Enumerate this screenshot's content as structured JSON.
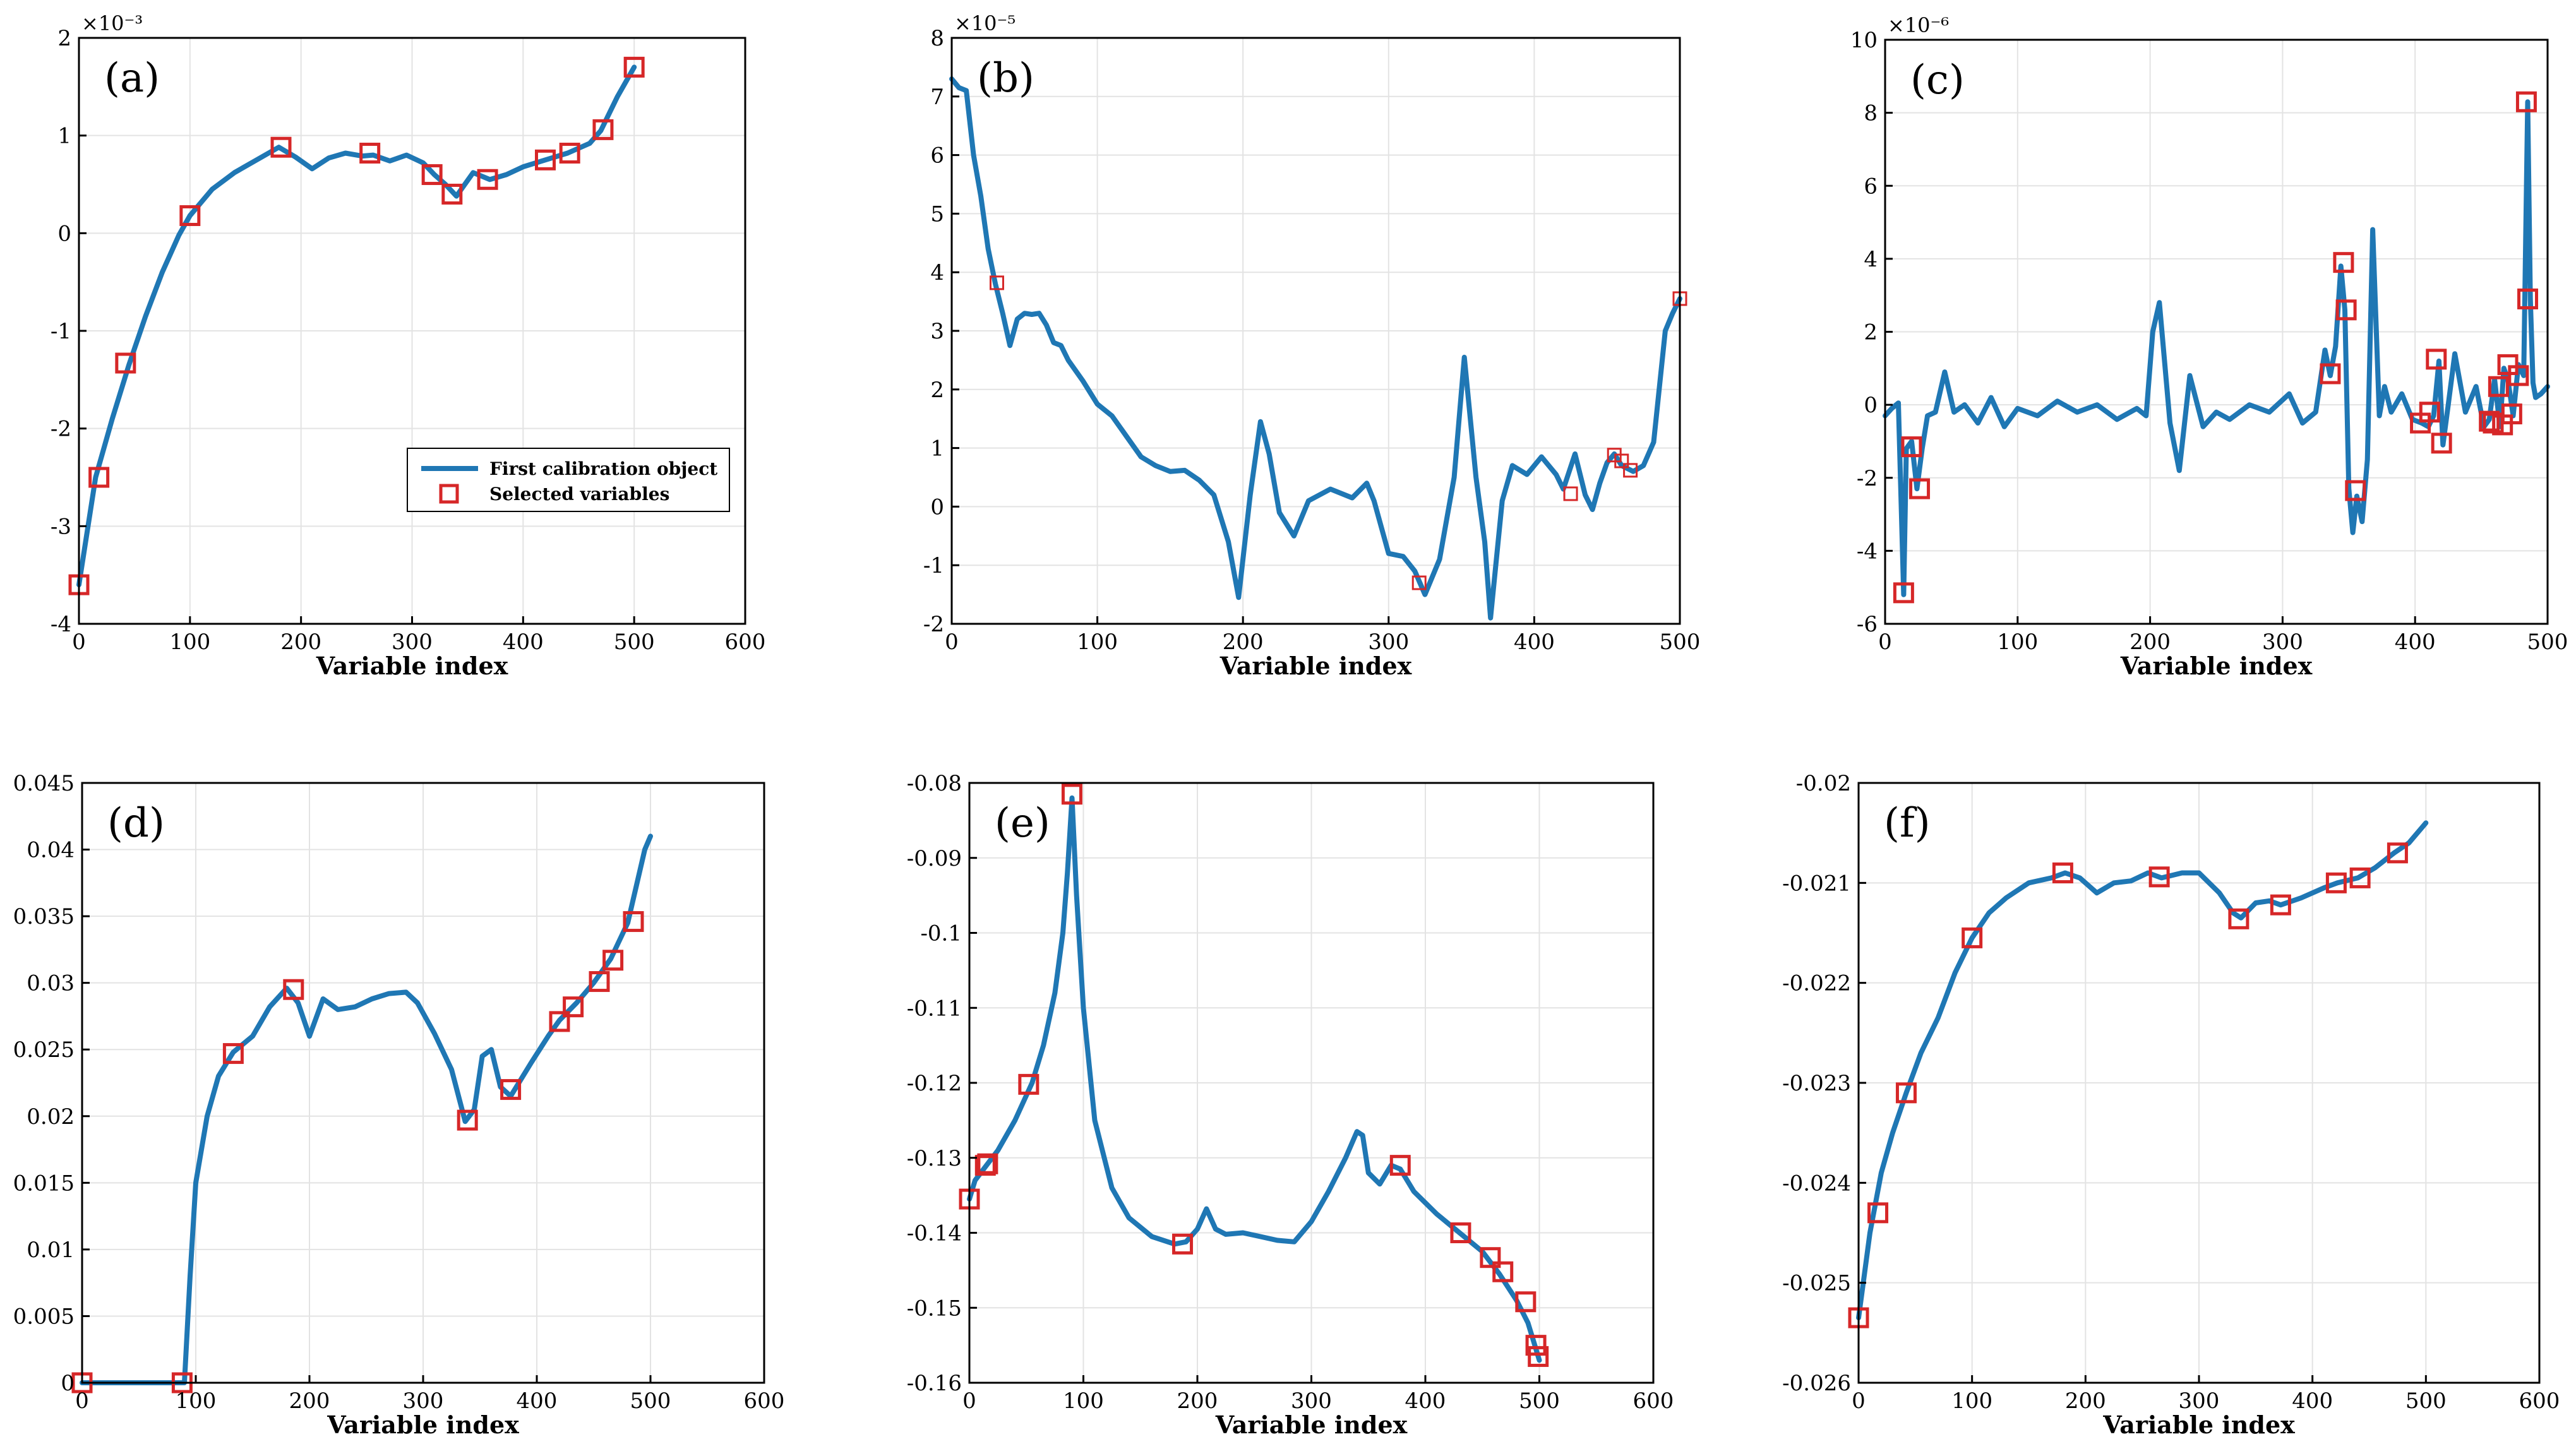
{
  "figure": {
    "line_color": "#1f77b4",
    "marker_color": "#d62728"
  },
  "chart_data": [
    {
      "id": "a",
      "panel_label": "(a)",
      "type": "line",
      "xlabel": "Variable index",
      "xlim": [
        0,
        600
      ],
      "xticks": [
        0,
        100,
        200,
        300,
        400,
        500,
        600
      ],
      "ylim": [
        -4,
        2
      ],
      "yticks": [
        -4,
        -3,
        -2,
        -1,
        0,
        1,
        2
      ],
      "ytick_labels": [
        "-4",
        "-3",
        "-2",
        "-1",
        "0",
        "1",
        "2"
      ],
      "exponent": "×10⁻³",
      "legend": {
        "position": "bottom-right",
        "line_label": "First calibration object",
        "marker_label": "Selected variables"
      },
      "series": [
        {
          "name": "First calibration object",
          "x": [
            0,
            15,
            30,
            45,
            60,
            75,
            90,
            100,
            120,
            140,
            160,
            180,
            195,
            210,
            225,
            240,
            255,
            265,
            280,
            295,
            310,
            320,
            330,
            340,
            355,
            370,
            385,
            400,
            420,
            440,
            460,
            470,
            485,
            500
          ],
          "y": [
            -3.6,
            -2.5,
            -1.9,
            -1.35,
            -0.85,
            -0.4,
            -0.02,
            0.18,
            0.45,
            0.62,
            0.75,
            0.88,
            0.78,
            0.66,
            0.77,
            0.82,
            0.79,
            0.8,
            0.74,
            0.8,
            0.72,
            0.6,
            0.5,
            0.38,
            0.62,
            0.55,
            0.6,
            0.68,
            0.75,
            0.82,
            0.92,
            1.05,
            1.4,
            1.7
          ]
        }
      ],
      "selected": {
        "x": [
          0,
          18,
          42,
          100,
          182,
          262,
          318,
          336,
          368,
          420,
          442,
          472,
          500
        ],
        "y": [
          -3.6,
          -2.5,
          -1.33,
          0.18,
          0.88,
          0.82,
          0.6,
          0.4,
          0.55,
          0.75,
          0.82,
          1.06,
          1.7
        ]
      }
    },
    {
      "id": "b",
      "panel_label": "(b)",
      "type": "line",
      "xlabel": "Variable index",
      "xlim": [
        0,
        500
      ],
      "xticks": [
        0,
        100,
        200,
        300,
        400,
        500
      ],
      "ylim": [
        -2,
        8
      ],
      "yticks": [
        -2,
        -1,
        0,
        1,
        2,
        3,
        4,
        5,
        6,
        7,
        8
      ],
      "ytick_labels": [
        "-2",
        "-1",
        "0",
        "1",
        "2",
        "3",
        "4",
        "5",
        "6",
        "7",
        "8"
      ],
      "exponent": "×10⁻⁵",
      "series": [
        {
          "name": "First calibration object",
          "x": [
            0,
            5,
            10,
            15,
            20,
            25,
            30,
            35,
            40,
            45,
            50,
            55,
            60,
            65,
            70,
            75,
            80,
            90,
            100,
            110,
            120,
            130,
            140,
            150,
            160,
            170,
            180,
            190,
            197,
            205,
            212,
            218,
            225,
            235,
            245,
            260,
            275,
            285,
            290,
            300,
            310,
            318,
            325,
            335,
            345,
            352,
            360,
            366,
            370,
            378,
            385,
            395,
            405,
            415,
            420,
            428,
            435,
            440,
            445,
            450,
            455,
            460,
            468,
            475,
            482,
            490,
            495,
            500
          ],
          "y": [
            7.3,
            7.15,
            7.1,
            6.0,
            5.3,
            4.4,
            3.8,
            3.3,
            2.75,
            3.2,
            3.3,
            3.28,
            3.3,
            3.1,
            2.8,
            2.75,
            2.5,
            2.15,
            1.75,
            1.55,
            1.2,
            0.85,
            0.7,
            0.6,
            0.62,
            0.45,
            0.2,
            -0.6,
            -1.55,
            0.2,
            1.45,
            0.9,
            -0.1,
            -0.5,
            0.1,
            0.3,
            0.15,
            0.4,
            0.1,
            -0.8,
            -0.85,
            -1.1,
            -1.5,
            -0.9,
            0.5,
            2.55,
            0.5,
            -0.6,
            -1.9,
            0.1,
            0.7,
            0.55,
            0.85,
            0.55,
            0.3,
            0.9,
            0.2,
            -0.05,
            0.4,
            0.75,
            0.9,
            0.7,
            0.6,
            0.7,
            1.1,
            3.0,
            3.3,
            3.55
          ]
        }
      ],
      "selected": {
        "x": [
          31,
          321,
          425,
          455,
          460,
          466,
          500
        ],
        "y": [
          3.82,
          -1.3,
          0.22,
          0.88,
          0.78,
          0.62,
          3.55
        ]
      }
    },
    {
      "id": "c",
      "panel_label": "(c)",
      "type": "line",
      "xlabel": "Variable index",
      "xlim": [
        0,
        500
      ],
      "xticks": [
        0,
        100,
        200,
        300,
        400,
        500
      ],
      "ylim": [
        -6,
        10
      ],
      "yticks": [
        -6,
        -4,
        -2,
        0,
        2,
        4,
        6,
        8,
        10
      ],
      "ytick_labels": [
        "-6",
        "-4",
        "-2",
        "0",
        "2",
        "4",
        "6",
        "8",
        "10"
      ],
      "exponent": "×10⁻⁶",
      "series": [
        {
          "name": "First calibration object",
          "x": [
            0,
            5,
            10,
            14,
            16,
            20,
            24,
            28,
            32,
            38,
            45,
            52,
            60,
            70,
            80,
            90,
            100,
            115,
            130,
            145,
            160,
            175,
            190,
            197,
            202,
            207,
            215,
            222,
            230,
            240,
            250,
            260,
            275,
            290,
            305,
            315,
            325,
            332,
            336,
            340,
            344,
            347,
            350,
            353,
            356,
            360,
            364,
            368,
            373,
            377,
            382,
            390,
            398,
            405,
            410,
            414,
            418,
            421,
            425,
            430,
            438,
            446,
            452,
            456,
            460,
            464,
            467,
            470,
            474,
            478,
            482,
            485,
            487,
            489,
            491,
            495,
            500
          ],
          "y": [
            -0.3,
            -0.1,
            0.05,
            -5.2,
            -1.2,
            -1.0,
            -2.3,
            -1.2,
            -0.3,
            -0.2,
            0.9,
            -0.2,
            0.0,
            -0.5,
            0.2,
            -0.6,
            -0.1,
            -0.3,
            0.1,
            -0.2,
            0.0,
            -0.4,
            -0.1,
            -0.3,
            2.0,
            2.8,
            -0.5,
            -1.8,
            0.8,
            -0.6,
            -0.2,
            -0.4,
            0.0,
            -0.2,
            0.3,
            -0.5,
            -0.2,
            1.5,
            0.8,
            1.6,
            3.8,
            2.6,
            -2.3,
            -3.5,
            -2.5,
            -3.2,
            -1.5,
            4.8,
            -0.3,
            0.5,
            -0.2,
            0.3,
            -0.4,
            -0.5,
            -0.6,
            -0.3,
            1.2,
            -1.1,
            0.0,
            1.4,
            -0.2,
            0.5,
            -0.6,
            -0.4,
            0.7,
            -0.6,
            1.0,
            0.7,
            -0.3,
            1.1,
            0.8,
            8.3,
            2.9,
            0.6,
            0.2,
            0.3,
            0.5
          ]
        }
      ],
      "selected": {
        "x": [
          14,
          20,
          26,
          336,
          346,
          348,
          355,
          404,
          411,
          416,
          420,
          456,
          459,
          463,
          466,
          470,
          473,
          478,
          484,
          485
        ],
        "y": [
          -5.15,
          -1.15,
          -2.3,
          0.85,
          3.9,
          2.6,
          -2.35,
          -0.5,
          -0.2,
          1.25,
          -1.05,
          -0.45,
          -0.5,
          0.5,
          -0.55,
          1.1,
          -0.25,
          0.8,
          8.3,
          2.9
        ]
      }
    },
    {
      "id": "d",
      "panel_label": "(d)",
      "type": "line",
      "xlabel": "Variable index",
      "xlim": [
        0,
        600
      ],
      "xticks": [
        0,
        100,
        200,
        300,
        400,
        500,
        600
      ],
      "ylim": [
        0,
        0.045
      ],
      "yticks": [
        0,
        0.005,
        0.01,
        0.015,
        0.02,
        0.025,
        0.03,
        0.035,
        0.04,
        0.045
      ],
      "ytick_labels": [
        "0",
        "0.005",
        "0.01",
        "0.015",
        "0.02",
        "0.025",
        "0.03",
        "0.035",
        "0.04",
        "0.045"
      ],
      "exponent": "",
      "series": [
        {
          "name": "First calibration object",
          "x": [
            0,
            85,
            90,
            95,
            100,
            110,
            120,
            133,
            150,
            165,
            180,
            190,
            200,
            212,
            225,
            240,
            255,
            270,
            285,
            295,
            310,
            325,
            337,
            345,
            352,
            360,
            368,
            377,
            395,
            410,
            420,
            435,
            450,
            465,
            480,
            495,
            500
          ],
          "y": [
            0,
            0,
            0,
            0.008,
            0.015,
            0.02,
            0.023,
            0.0248,
            0.026,
            0.0282,
            0.0296,
            0.0285,
            0.026,
            0.0288,
            0.028,
            0.0282,
            0.0288,
            0.0292,
            0.0293,
            0.0285,
            0.0262,
            0.0235,
            0.0196,
            0.0205,
            0.0245,
            0.025,
            0.0222,
            0.0215,
            0.024,
            0.026,
            0.0272,
            0.0285,
            0.03,
            0.0318,
            0.0345,
            0.04,
            0.041
          ]
        }
      ],
      "selected": {
        "x": [
          0,
          88,
          133,
          186,
          339,
          377,
          420,
          432,
          455,
          467,
          485
        ],
        "y": [
          0,
          0,
          0.0247,
          0.0295,
          0.0197,
          0.022,
          0.0271,
          0.0282,
          0.0301,
          0.0317,
          0.0346
        ]
      }
    },
    {
      "id": "e",
      "panel_label": "(e)",
      "type": "line",
      "xlabel": "Variable index",
      "xlim": [
        0,
        600
      ],
      "xticks": [
        0,
        100,
        200,
        300,
        400,
        500,
        600
      ],
      "ylim": [
        -0.16,
        -0.08
      ],
      "yticks": [
        -0.16,
        -0.15,
        -0.14,
        -0.13,
        -0.12,
        -0.11,
        -0.1,
        -0.09,
        -0.08
      ],
      "ytick_labels": [
        "-0.16",
        "-0.15",
        "-0.14",
        "-0.13",
        "-0.12",
        "-0.11",
        "-0.1",
        "-0.09",
        "-0.08"
      ],
      "exponent": "",
      "series": [
        {
          "name": "First calibration object",
          "x": [
            0,
            5,
            15,
            25,
            40,
            55,
            65,
            75,
            82,
            86,
            90,
            94,
            100,
            110,
            125,
            140,
            160,
            180,
            190,
            200,
            208,
            216,
            225,
            240,
            255,
            270,
            285,
            300,
            315,
            330,
            340,
            345,
            350,
            360,
            370,
            378,
            390,
            410,
            430,
            450,
            465,
            480,
            490,
            495,
            500
          ],
          "y": [
            -0.1355,
            -0.133,
            -0.131,
            -0.129,
            -0.125,
            -0.12,
            -0.115,
            -0.108,
            -0.1,
            -0.092,
            -0.082,
            -0.095,
            -0.11,
            -0.125,
            -0.134,
            -0.138,
            -0.1405,
            -0.1415,
            -0.1412,
            -0.1395,
            -0.1368,
            -0.1395,
            -0.1402,
            -0.14,
            -0.1405,
            -0.141,
            -0.1412,
            -0.1385,
            -0.1345,
            -0.13,
            -0.1265,
            -0.127,
            -0.132,
            -0.1335,
            -0.131,
            -0.1315,
            -0.1345,
            -0.1375,
            -0.14,
            -0.1425,
            -0.1455,
            -0.149,
            -0.152,
            -0.1545,
            -0.157
          ]
        }
      ],
      "selected": {
        "x": [
          0,
          14,
          16,
          52,
          90,
          187,
          378,
          431,
          457,
          468,
          488,
          497,
          499
        ],
        "y": [
          -0.1355,
          -0.131,
          -0.1308,
          -0.1202,
          -0.0815,
          -0.1415,
          -0.131,
          -0.14,
          -0.1433,
          -0.1452,
          -0.1492,
          -0.155,
          -0.1565
        ]
      }
    },
    {
      "id": "f",
      "panel_label": "(f)",
      "type": "line",
      "xlabel": "Variable index",
      "xlim": [
        0,
        600
      ],
      "xticks": [
        0,
        100,
        200,
        300,
        400,
        500,
        600
      ],
      "ylim": [
        -0.026,
        -0.02
      ],
      "yticks": [
        -0.026,
        -0.025,
        -0.024,
        -0.023,
        -0.022,
        -0.021,
        -0.02
      ],
      "ytick_labels": [
        "-0.026",
        "-0.025",
        "-0.024",
        "-0.023",
        "-0.022",
        "-0.021",
        "-0.02"
      ],
      "exponent": "",
      "series": [
        {
          "name": "First calibration object",
          "x": [
            0,
            10,
            20,
            30,
            42,
            55,
            70,
            85,
            100,
            115,
            130,
            150,
            170,
            182,
            195,
            210,
            225,
            240,
            255,
            267,
            285,
            300,
            318,
            330,
            337,
            350,
            362,
            372,
            390,
            410,
            422,
            440,
            455,
            472,
            485,
            500
          ],
          "y": [
            -0.02535,
            -0.0245,
            -0.0239,
            -0.0235,
            -0.0231,
            -0.0227,
            -0.02235,
            -0.0219,
            -0.02155,
            -0.0213,
            -0.02115,
            -0.021,
            -0.02095,
            -0.0209,
            -0.02095,
            -0.0211,
            -0.021,
            -0.02098,
            -0.0209,
            -0.02095,
            -0.0209,
            -0.0209,
            -0.0211,
            -0.0213,
            -0.02135,
            -0.0212,
            -0.02118,
            -0.02122,
            -0.02115,
            -0.02105,
            -0.021,
            -0.02095,
            -0.02085,
            -0.0207,
            -0.0206,
            -0.0204
          ]
        }
      ],
      "selected": {
        "x": [
          0,
          17,
          42,
          100,
          180,
          265,
          335,
          372,
          421,
          442,
          475
        ],
        "y": [
          -0.02535,
          -0.0243,
          -0.0231,
          -0.02155,
          -0.0209,
          -0.02094,
          -0.02136,
          -0.02122,
          -0.021,
          -0.02095,
          -0.0207
        ]
      }
    }
  ]
}
